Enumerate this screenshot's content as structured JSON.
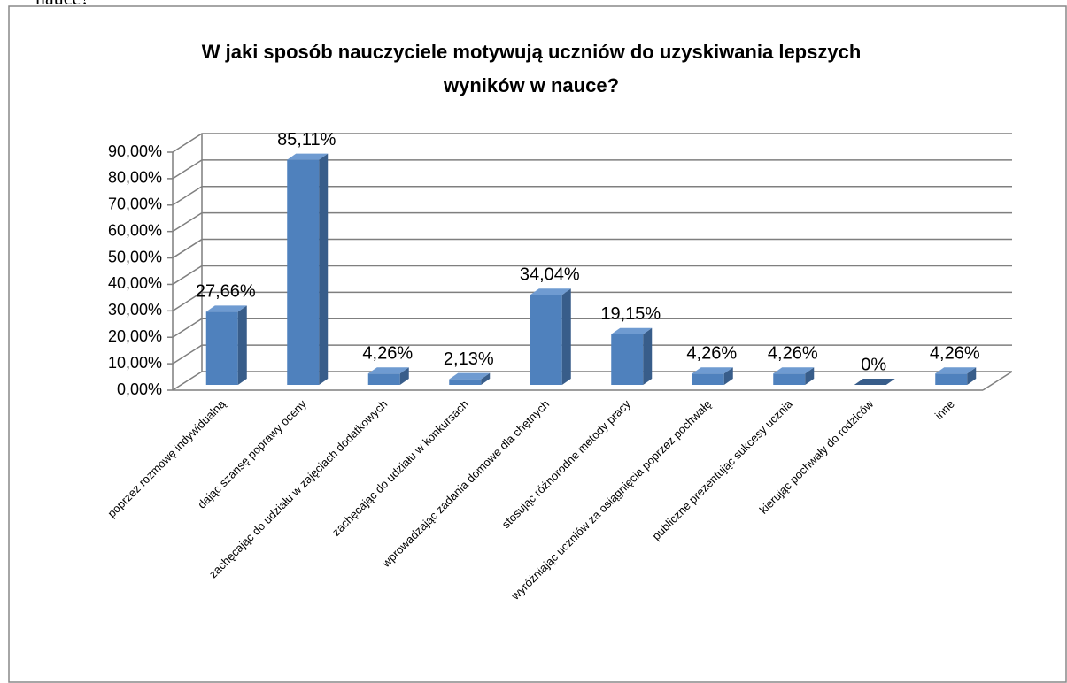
{
  "chart_data": {
    "type": "bar3d",
    "caption": "nauce?",
    "title": [
      "W jaki sposób nauczyciele motywują uczniów do uzyskiwania lepszych",
      "wyników w nauce?"
    ],
    "categories": [
      "poprzez rozmowę indywidualną",
      "dając szansę poprawy oceny",
      "zachęcając do udziału w zajęciach dodatkowych",
      "zachęcając do udziału w konkursach",
      "wprowadzając zadania domowe dla chętnych",
      "stosując różnorodne metody pracy",
      "wyróżniając uczniów za osiągnięcia poprzez pochwałę",
      "publiczne prezentując sukcesy ucznia",
      "kierując pochwały do rodziców",
      "inne"
    ],
    "values": [
      27.66,
      85.11,
      4.26,
      2.13,
      34.04,
      19.15,
      4.26,
      4.26,
      0,
      4.26
    ],
    "value_labels": [
      "27,66%",
      "85,11%",
      "4,26%",
      "2,13%",
      "34,04%",
      "19,15%",
      "4,26%",
      "4,26%",
      "0%",
      "4,26%"
    ],
    "color": "#4f81bd",
    "ylim": [
      0,
      90
    ],
    "yticks": [
      {
        "value": 0,
        "label": "0,00%"
      },
      {
        "value": 10,
        "label": "10,00%"
      },
      {
        "value": 20,
        "label": "20,00%"
      },
      {
        "value": 30,
        "label": "30,00%"
      },
      {
        "value": 40,
        "label": "40,00%"
      },
      {
        "value": 50,
        "label": "50,00%"
      },
      {
        "value": 60,
        "label": "60,00%"
      },
      {
        "value": 70,
        "label": "70,00%"
      },
      {
        "value": 80,
        "label": "80,00%"
      },
      {
        "value": 90,
        "label": "90,00%"
      }
    ],
    "grid": true
  }
}
